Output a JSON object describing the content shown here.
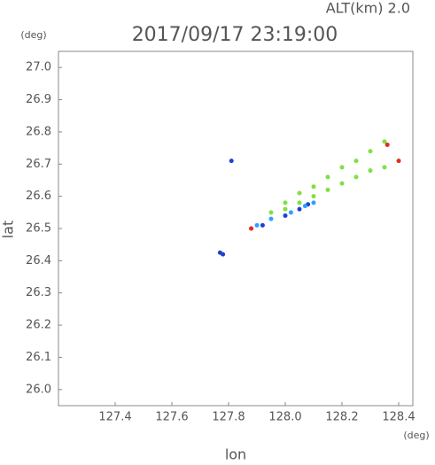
{
  "chart_data": {
    "type": "scatter",
    "title": "2017/09/17 23:19:00",
    "subtitle": "ALT(km) 2.0",
    "x_label": "lon",
    "y_label": "lat",
    "x_unit": "(deg)",
    "y_unit": "(deg)",
    "xlim": [
      127.2,
      128.45
    ],
    "ylim": [
      25.95,
      27.05
    ],
    "xticks": [
      127.4,
      127.6,
      127.8,
      {
        "value": 128,
        "label": "128.0"
      },
      128.2,
      128.4
    ],
    "yticks": [
      {
        "value": 26,
        "label": "26.0"
      },
      26.1,
      26.2,
      26.3,
      26.4,
      26.5,
      26.6,
      26.7,
      26.8,
      26.9,
      {
        "value": 27,
        "label": "27.0"
      }
    ],
    "series": [
      {
        "color": "#2040d0",
        "x": [
          127.81,
          127.77,
          127.78,
          127.92,
          128.0,
          128.05,
          128.08
        ],
        "values": [
          26.71,
          26.425,
          26.42,
          26.51,
          26.54,
          26.56,
          26.575
        ]
      },
      {
        "color": "#30a0ff",
        "x": [
          127.9,
          127.95,
          128.02,
          128.07,
          128.1
        ],
        "values": [
          26.51,
          26.53,
          26.55,
          26.57,
          26.58
        ]
      },
      {
        "color": "#80e040",
        "x": [
          127.95,
          128.0,
          128.05,
          128.1,
          128.15,
          128.2,
          128.25,
          128.3,
          128.35,
          128.0,
          128.05,
          128.1,
          128.15,
          128.2,
          128.25,
          128.3,
          128.35,
          128.4
        ],
        "values": [
          26.55,
          26.58,
          26.61,
          26.63,
          26.66,
          26.69,
          26.71,
          26.74,
          26.77,
          26.56,
          26.58,
          26.6,
          26.62,
          26.64,
          26.66,
          26.68,
          26.69,
          26.71
        ]
      },
      {
        "color": "#e03020",
        "x": [
          127.88,
          128.36,
          127.88,
          128.4
        ],
        "values": [
          26.5,
          26.76,
          26.5,
          26.71
        ]
      }
    ]
  }
}
